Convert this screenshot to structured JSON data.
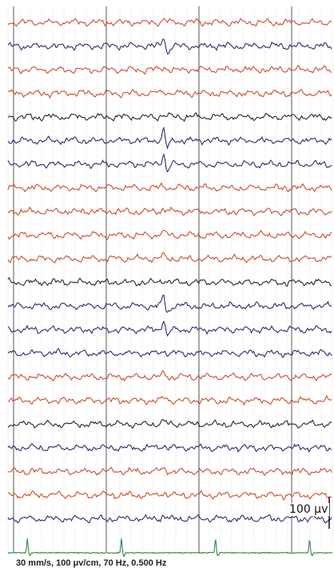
{
  "chart_data": {
    "type": "line",
    "title": "",
    "channel_count": 22,
    "channel_colors": [
      "#c8502e",
      "#2a2e6e",
      "#c8502e",
      "#c8502e",
      "#222a2e",
      "#2a2e6e",
      "#2a2e6e",
      "#c8502e",
      "#c8502e",
      "#c8502e",
      "#c8502e",
      "#222a2e",
      "#2a2e6e",
      "#2a2e6e",
      "#2a2e6e",
      "#c8502e",
      "#c8502e",
      "#222a2e",
      "#2a2e6e",
      "#c8502e",
      "#c8502e",
      "#2a2e6e"
    ],
    "ecg_color": "#2a8a3a",
    "spike_channels": [
      1,
      5,
      6,
      12,
      13
    ],
    "spike_time_fraction": 0.45,
    "ecg_beat_fractions": [
      0.04,
      0.33,
      0.62,
      0.91
    ],
    "grid": true,
    "settings_text": "30 mm/s, 100 μv/cm, 70 Hz, 0.500 Hz",
    "scale_bar_label": "100 μv"
  }
}
